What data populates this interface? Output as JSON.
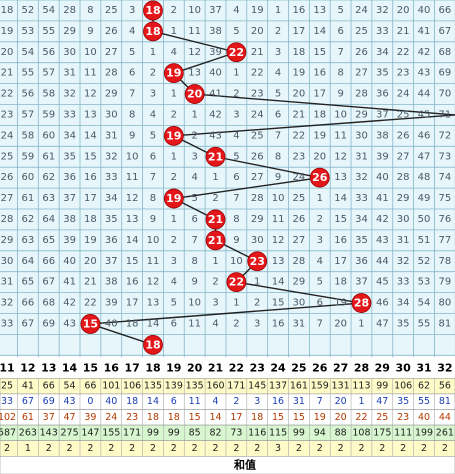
{
  "grid": {
    "columns": [
      11,
      12,
      13,
      14,
      15,
      16,
      17,
      18,
      19,
      20,
      21,
      22,
      23,
      24,
      25,
      26,
      27,
      28,
      29,
      30,
      31,
      32
    ],
    "rows": [
      {
        "omissions": [
          18,
          52,
          54,
          28,
          8,
          25,
          3,
          null,
          2,
          10,
          37,
          4,
          19,
          1,
          16,
          13,
          5,
          24,
          32,
          20,
          40,
          66
        ],
        "sum": 18
      },
      {
        "omissions": [
          19,
          53,
          55,
          29,
          9,
          26,
          4,
          null,
          1,
          11,
          38,
          5,
          20,
          2,
          17,
          14,
          6,
          25,
          33,
          21,
          41,
          67
        ],
        "sum": 18
      },
      {
        "omissions": [
          20,
          54,
          56,
          30,
          10,
          27,
          5,
          1,
          4,
          12,
          39,
          null,
          21,
          3,
          18,
          15,
          7,
          26,
          34,
          22,
          42,
          68
        ],
        "sum": 22
      },
      {
        "omissions": [
          21,
          55,
          57,
          31,
          11,
          28,
          6,
          2,
          null,
          13,
          40,
          1,
          22,
          4,
          19,
          16,
          8,
          27,
          35,
          23,
          43,
          69
        ],
        "sum": 19
      },
      {
        "omissions": [
          22,
          56,
          58,
          32,
          12,
          29,
          7,
          3,
          1,
          null,
          41,
          2,
          23,
          5,
          20,
          17,
          9,
          28,
          36,
          24,
          44,
          70
        ],
        "sum": 20
      },
      {
        "omissions": [
          23,
          57,
          59,
          33,
          13,
          30,
          8,
          4,
          2,
          1,
          42,
          3,
          24,
          6,
          21,
          18,
          10,
          29,
          37,
          25,
          45,
          71
        ],
        "sum": null
      },
      {
        "omissions": [
          24,
          58,
          60,
          34,
          14,
          31,
          9,
          5,
          null,
          2,
          43,
          4,
          25,
          7,
          22,
          19,
          11,
          30,
          38,
          26,
          46,
          72
        ],
        "sum": 19
      },
      {
        "omissions": [
          25,
          59,
          61,
          35,
          15,
          32,
          10,
          6,
          1,
          3,
          null,
          5,
          26,
          8,
          23,
          20,
          12,
          31,
          39,
          27,
          47,
          73
        ],
        "sum": 21
      },
      {
        "omissions": [
          26,
          60,
          62,
          36,
          16,
          33,
          11,
          7,
          2,
          4,
          1,
          6,
          27,
          9,
          24,
          null,
          13,
          32,
          40,
          28,
          48,
          74
        ],
        "sum": 26
      },
      {
        "omissions": [
          27,
          61,
          63,
          37,
          17,
          34,
          12,
          8,
          null,
          5,
          2,
          7,
          28,
          10,
          25,
          1,
          14,
          33,
          41,
          29,
          49,
          75
        ],
        "sum": 19
      },
      {
        "omissions": [
          28,
          62,
          64,
          38,
          18,
          35,
          13,
          9,
          1,
          6,
          null,
          8,
          29,
          11,
          26,
          2,
          15,
          34,
          42,
          30,
          50,
          76
        ],
        "sum": 21
      },
      {
        "omissions": [
          29,
          63,
          65,
          39,
          19,
          36,
          14,
          10,
          2,
          7,
          null,
          9,
          30,
          12,
          27,
          3,
          16,
          35,
          43,
          31,
          51,
          77
        ],
        "sum": 21
      },
      {
        "omissions": [
          30,
          64,
          66,
          40,
          20,
          37,
          15,
          11,
          3,
          8,
          1,
          10,
          null,
          13,
          28,
          4,
          17,
          36,
          44,
          32,
          52,
          78
        ],
        "sum": 23
      },
      {
        "omissions": [
          31,
          65,
          67,
          41,
          21,
          38,
          16,
          12,
          4,
          9,
          2,
          null,
          1,
          14,
          29,
          5,
          18,
          37,
          45,
          33,
          53,
          79
        ],
        "sum": 22
      },
      {
        "omissions": [
          32,
          66,
          68,
          42,
          22,
          39,
          17,
          13,
          5,
          10,
          3,
          1,
          2,
          15,
          30,
          6,
          19,
          null,
          46,
          34,
          54,
          80
        ],
        "sum": 28
      },
      {
        "omissions": [
          33,
          67,
          69,
          43,
          null,
          40,
          18,
          14,
          6,
          11,
          4,
          2,
          3,
          16,
          31,
          7,
          20,
          1,
          47,
          35,
          55,
          81
        ],
        "sum": 15
      },
      {
        "sum": 18
      }
    ]
  },
  "stats": {
    "rows": [
      [
        25,
        41,
        66,
        54,
        66,
        101,
        106,
        135,
        139,
        135,
        160,
        171,
        145,
        137,
        161,
        159,
        131,
        113,
        99,
        106,
        62,
        56
      ],
      [
        33,
        67,
        69,
        43,
        0,
        40,
        18,
        14,
        6,
        11,
        4,
        2,
        3,
        16,
        31,
        7,
        20,
        1,
        47,
        35,
        55,
        81
      ],
      [
        102,
        61,
        37,
        47,
        39,
        24,
        23,
        18,
        18,
        15,
        14,
        17,
        18,
        15,
        15,
        19,
        20,
        22,
        25,
        23,
        40,
        44
      ],
      [
        587,
        263,
        143,
        275,
        147,
        155,
        171,
        99,
        99,
        85,
        82,
        73,
        116,
        115,
        99,
        94,
        88,
        108,
        175,
        111,
        199,
        261
      ],
      [
        2,
        1,
        2,
        2,
        2,
        2,
        2,
        2,
        2,
        2,
        2,
        2,
        2,
        3,
        2,
        2,
        2,
        2,
        2,
        2,
        2,
        2
      ]
    ]
  },
  "footer_label": "和值"
}
